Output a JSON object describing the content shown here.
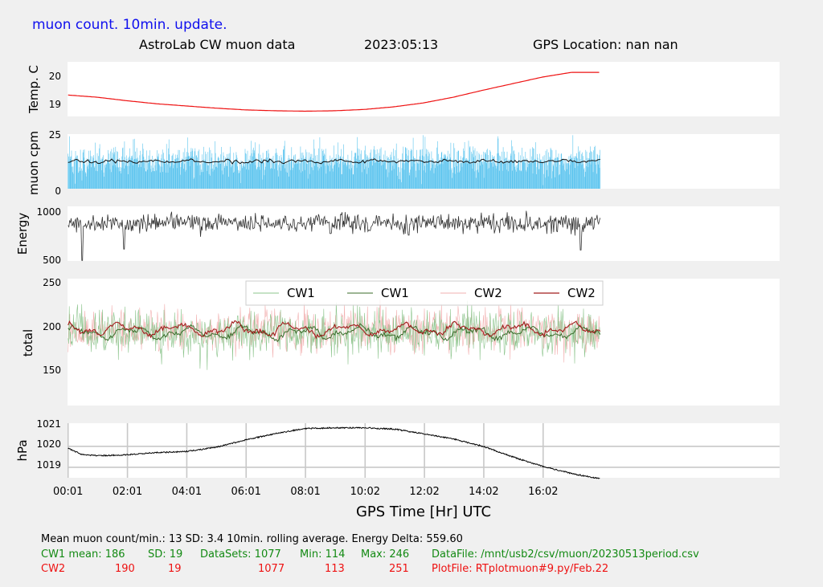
{
  "header": {
    "blue_note": "muon count.  10min. update.",
    "title": "AstroLab CW muon data",
    "date": "2023:05:13",
    "gps_location": "GPS Location: nan   nan"
  },
  "colors": {
    "blue_note": "#1010ee",
    "temperature": "#ee1111",
    "muon_bars": "#5bc4ee",
    "muon_avg": "#111111",
    "energy": "#333333",
    "cw1_raw": "#8cc48c",
    "cw1_avg": "#3a6b2a",
    "cw2_raw": "#f2b0b0",
    "cw2_avg": "#a21c1c",
    "pressure": "#000000",
    "footer_black": "#000000",
    "footer_green": "#138a13",
    "footer_red": "#ee1111"
  },
  "chart_data": [
    {
      "id": "temperature",
      "type": "line",
      "ylabel": "Temp. C",
      "yticks": [
        "20",
        "19"
      ],
      "ylim": [
        18.5,
        21
      ],
      "xlim": [
        0,
        24
      ],
      "grid": false,
      "x": [
        0.02,
        1,
        2,
        3,
        4,
        5,
        6,
        7,
        8,
        9,
        10,
        11,
        12,
        13,
        14,
        15,
        16,
        17,
        17.95
      ],
      "values": [
        19.48,
        19.38,
        19.22,
        19.08,
        18.98,
        18.88,
        18.8,
        18.76,
        18.74,
        18.76,
        18.82,
        18.94,
        19.12,
        19.38,
        19.7,
        20.0,
        20.3,
        20.52,
        20.52
      ]
    },
    {
      "id": "muon_cpm",
      "type": "bar",
      "ylabel": "muon cpm",
      "yticks": [
        "25",
        "0"
      ],
      "ylim": [
        0,
        25
      ],
      "xlim": [
        0,
        24
      ],
      "x_range": [
        0.02,
        17.95
      ],
      "raw_mean": 13,
      "raw_sd": 3.4,
      "rolling_average": "10min.",
      "avg_level": 12.5
    },
    {
      "id": "energy",
      "type": "line",
      "ylabel": "Energy",
      "yticks": [
        "1000",
        "500"
      ],
      "ylim": [
        500,
        1050
      ],
      "xlim": [
        0,
        24
      ],
      "x_range": [
        0.02,
        17.95
      ],
      "center": 880,
      "spread": 120,
      "dips": [
        [
          0.5,
          500
        ],
        [
          1.9,
          620
        ],
        [
          11.5,
          760
        ],
        [
          17.3,
          610
        ]
      ]
    },
    {
      "id": "total",
      "type": "line",
      "ylabel": "total",
      "yticks": [
        "250",
        "200",
        "150"
      ],
      "ylim": [
        100,
        250
      ],
      "xlim": [
        0,
        24
      ],
      "x_range": [
        0.02,
        17.95
      ],
      "legend": "top-center",
      "series": [
        {
          "name": "CW1",
          "kind": "raw",
          "mean": 186,
          "sd": 19,
          "min": 114,
          "max": 246
        },
        {
          "name": "CW1",
          "kind": "rolling"
        },
        {
          "name": "CW2",
          "kind": "raw",
          "mean": 190,
          "sd": 19,
          "min": 113,
          "max": 251
        },
        {
          "name": "CW2",
          "kind": "rolling"
        }
      ]
    },
    {
      "id": "pressure",
      "type": "line",
      "ylabel": "hPa",
      "yticks": [
        "1021",
        "1020",
        "1019"
      ],
      "ylim": [
        1018.5,
        1021.1
      ],
      "xlim": [
        0,
        24
      ],
      "grid": true,
      "xlabel": "GPS Time  [Hr] UTC",
      "xticks": [
        "00:01",
        "02:01",
        "04:01",
        "06:01",
        "08:01",
        "10:02",
        "12:02",
        "14:02",
        "16:02"
      ],
      "xtick_hours": [
        0.02,
        2.02,
        4.02,
        6.02,
        8.02,
        10.03,
        12.03,
        14.03,
        16.03
      ],
      "x": [
        0.02,
        0.5,
        1,
        2,
        3,
        4,
        5,
        6,
        7,
        8,
        9,
        10,
        11,
        12,
        13,
        14,
        15,
        16,
        17,
        17.95
      ],
      "values": [
        1019.9,
        1019.6,
        1019.55,
        1019.6,
        1019.7,
        1019.75,
        1019.95,
        1020.3,
        1020.6,
        1020.85,
        1020.88,
        1020.88,
        1020.82,
        1020.6,
        1020.35,
        1020.0,
        1019.5,
        1019.05,
        1018.7,
        1018.45
      ]
    }
  ],
  "footer": {
    "line1": "Mean muon count/min.: 13  SD: 3.4   10min. rolling average.    Energy Delta:  559.60",
    "cw1": {
      "name": "CW1 mean: 186",
      "sd": "SD: 19",
      "datasets": "DataSets: 1077",
      "min": "Min: 114",
      "max": "Max: 246",
      "file": "DataFile: /mnt/usb2/csv/muon/20230513period.csv"
    },
    "cw2": {
      "name": "CW2",
      "mean": "190",
      "sd": "19",
      "datasets": "1077",
      "min": "113",
      "max": "251",
      "file": "PlotFile: RTplotmuon#9.py/Feb.22"
    }
  }
}
